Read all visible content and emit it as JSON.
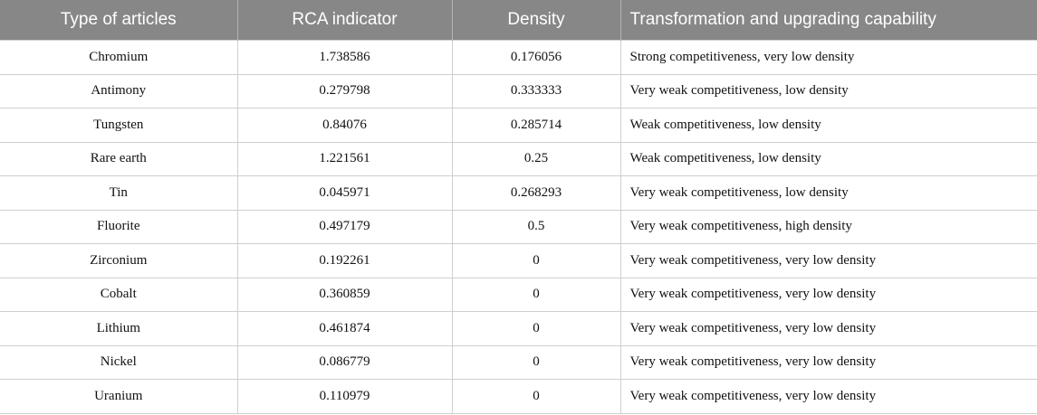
{
  "table": {
    "headers": [
      "Type of articles",
      "RCA indicator",
      "Density",
      "Transformation and upgrading capability"
    ],
    "rows": [
      [
        "Chromium",
        "1.738586",
        "0.176056",
        "Strong competitiveness, very low density"
      ],
      [
        "Antimony",
        "0.279798",
        "0.333333",
        "Very weak competitiveness, low density"
      ],
      [
        "Tungsten",
        "0.84076",
        "0.285714",
        "Weak competitiveness, low density"
      ],
      [
        "Rare earth",
        "1.221561",
        "0.25",
        "Weak competitiveness, low density"
      ],
      [
        "Tin",
        "0.045971",
        "0.268293",
        "Very weak competitiveness, low density"
      ],
      [
        "Fluorite",
        "0.497179",
        "0.5",
        "Very weak competitiveness, high density"
      ],
      [
        "Zirconium",
        "0.192261",
        "0",
        "Very weak competitiveness, very low density"
      ],
      [
        "Cobalt",
        "0.360859",
        "0",
        "Very weak competitiveness, very low density"
      ],
      [
        "Lithium",
        "0.461874",
        "0",
        "Very weak competitiveness, very low density"
      ],
      [
        "Nickel",
        "0.086779",
        "0",
        "Very weak competitiveness, very low density"
      ],
      [
        "Uranium",
        "0.110979",
        "0",
        "Very weak competitiveness, very low density"
      ]
    ]
  }
}
